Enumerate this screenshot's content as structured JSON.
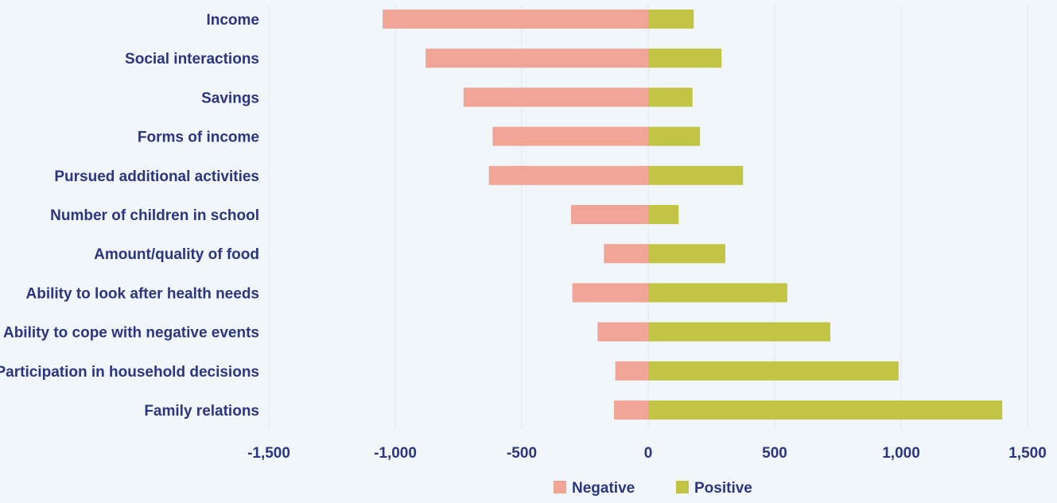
{
  "chart_data": {
    "type": "bar",
    "orientation": "horizontal",
    "stacked": "diverging",
    "categories": [
      "Income",
      "Social interactions",
      "Savings",
      "Forms of income",
      "Pursued additional activities",
      "Number of children in school",
      "Amount/quality of food",
      "Ability to look after health needs",
      "Ability to cope with negative events",
      "Participation in household decisions",
      "Family relations"
    ],
    "series": [
      {
        "name": "Negative",
        "color": "#f0a596",
        "values": [
          -1050,
          -880,
          -730,
          -615,
          -630,
          -305,
          -175,
          -300,
          -200,
          -130,
          -135
        ]
      },
      {
        "name": "Positive",
        "color": "#c2c544",
        "values": [
          180,
          290,
          175,
          205,
          375,
          120,
          305,
          550,
          720,
          990,
          1400
        ]
      }
    ],
    "xlim": [
      -1500,
      1500
    ],
    "xticks": [
      -1500,
      -1000,
      -500,
      0,
      500,
      1000,
      1500
    ],
    "xtick_labels": [
      "-1,500",
      "-1,000",
      "-500",
      "0",
      "500",
      "1,000",
      "1,500"
    ],
    "grid": true,
    "legend_position": "bottom-center",
    "title": "",
    "xlabel": "",
    "ylabel": ""
  }
}
